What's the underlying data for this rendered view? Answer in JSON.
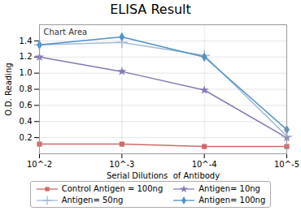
{
  "chart_data": {
    "type": "line",
    "title": "ELISA Result",
    "xlabel": "Serial Dilutions  of Antibody",
    "ylabel": "O.D. Reading",
    "x": [
      0.01,
      0.001,
      0.0001,
      1e-05
    ],
    "series": [
      {
        "name": "Control Antigen = 100ng",
        "color": "#cd6b6b",
        "marker": "square",
        "line_style": "solid",
        "values": [
          0.12,
          0.12,
          0.09,
          0.09
        ]
      },
      {
        "name": "Antigen= 10ng",
        "color": "#8878b8",
        "marker": "star",
        "line_style": "solid",
        "values": [
          1.2,
          1.02,
          0.79,
          0.2
        ]
      },
      {
        "name": "Antigen= 50ng",
        "color": "#a0bcd8",
        "marker": "plus",
        "line_style": "solid",
        "values": [
          1.35,
          1.38,
          1.22,
          0.22
        ]
      },
      {
        "name": "Antigen= 100ng",
        "color": "#5090c8",
        "marker": "diamond",
        "line_style": "solid",
        "values": [
          1.35,
          1.45,
          1.2,
          0.3
        ]
      }
    ],
    "log": "x",
    "xlim": [
      0.01,
      1e-05
    ],
    "xticks": [
      {
        "value": 0.01,
        "label": "10^-2"
      },
      {
        "value": 0.001,
        "label": "10^-3"
      },
      {
        "value": 0.0001,
        "label": "10^-4"
      },
      {
        "value": 1e-05,
        "label": "10^-5"
      }
    ],
    "ylim": [
      0,
      1.6
    ],
    "yticks": [
      0.2,
      0.4,
      0.6,
      0.8,
      {
        "value": 1.0,
        "label": "1.0"
      },
      1.2,
      1.4
    ],
    "grid": true,
    "legend": "bottom",
    "annotations": [
      "Chart Area"
    ]
  }
}
